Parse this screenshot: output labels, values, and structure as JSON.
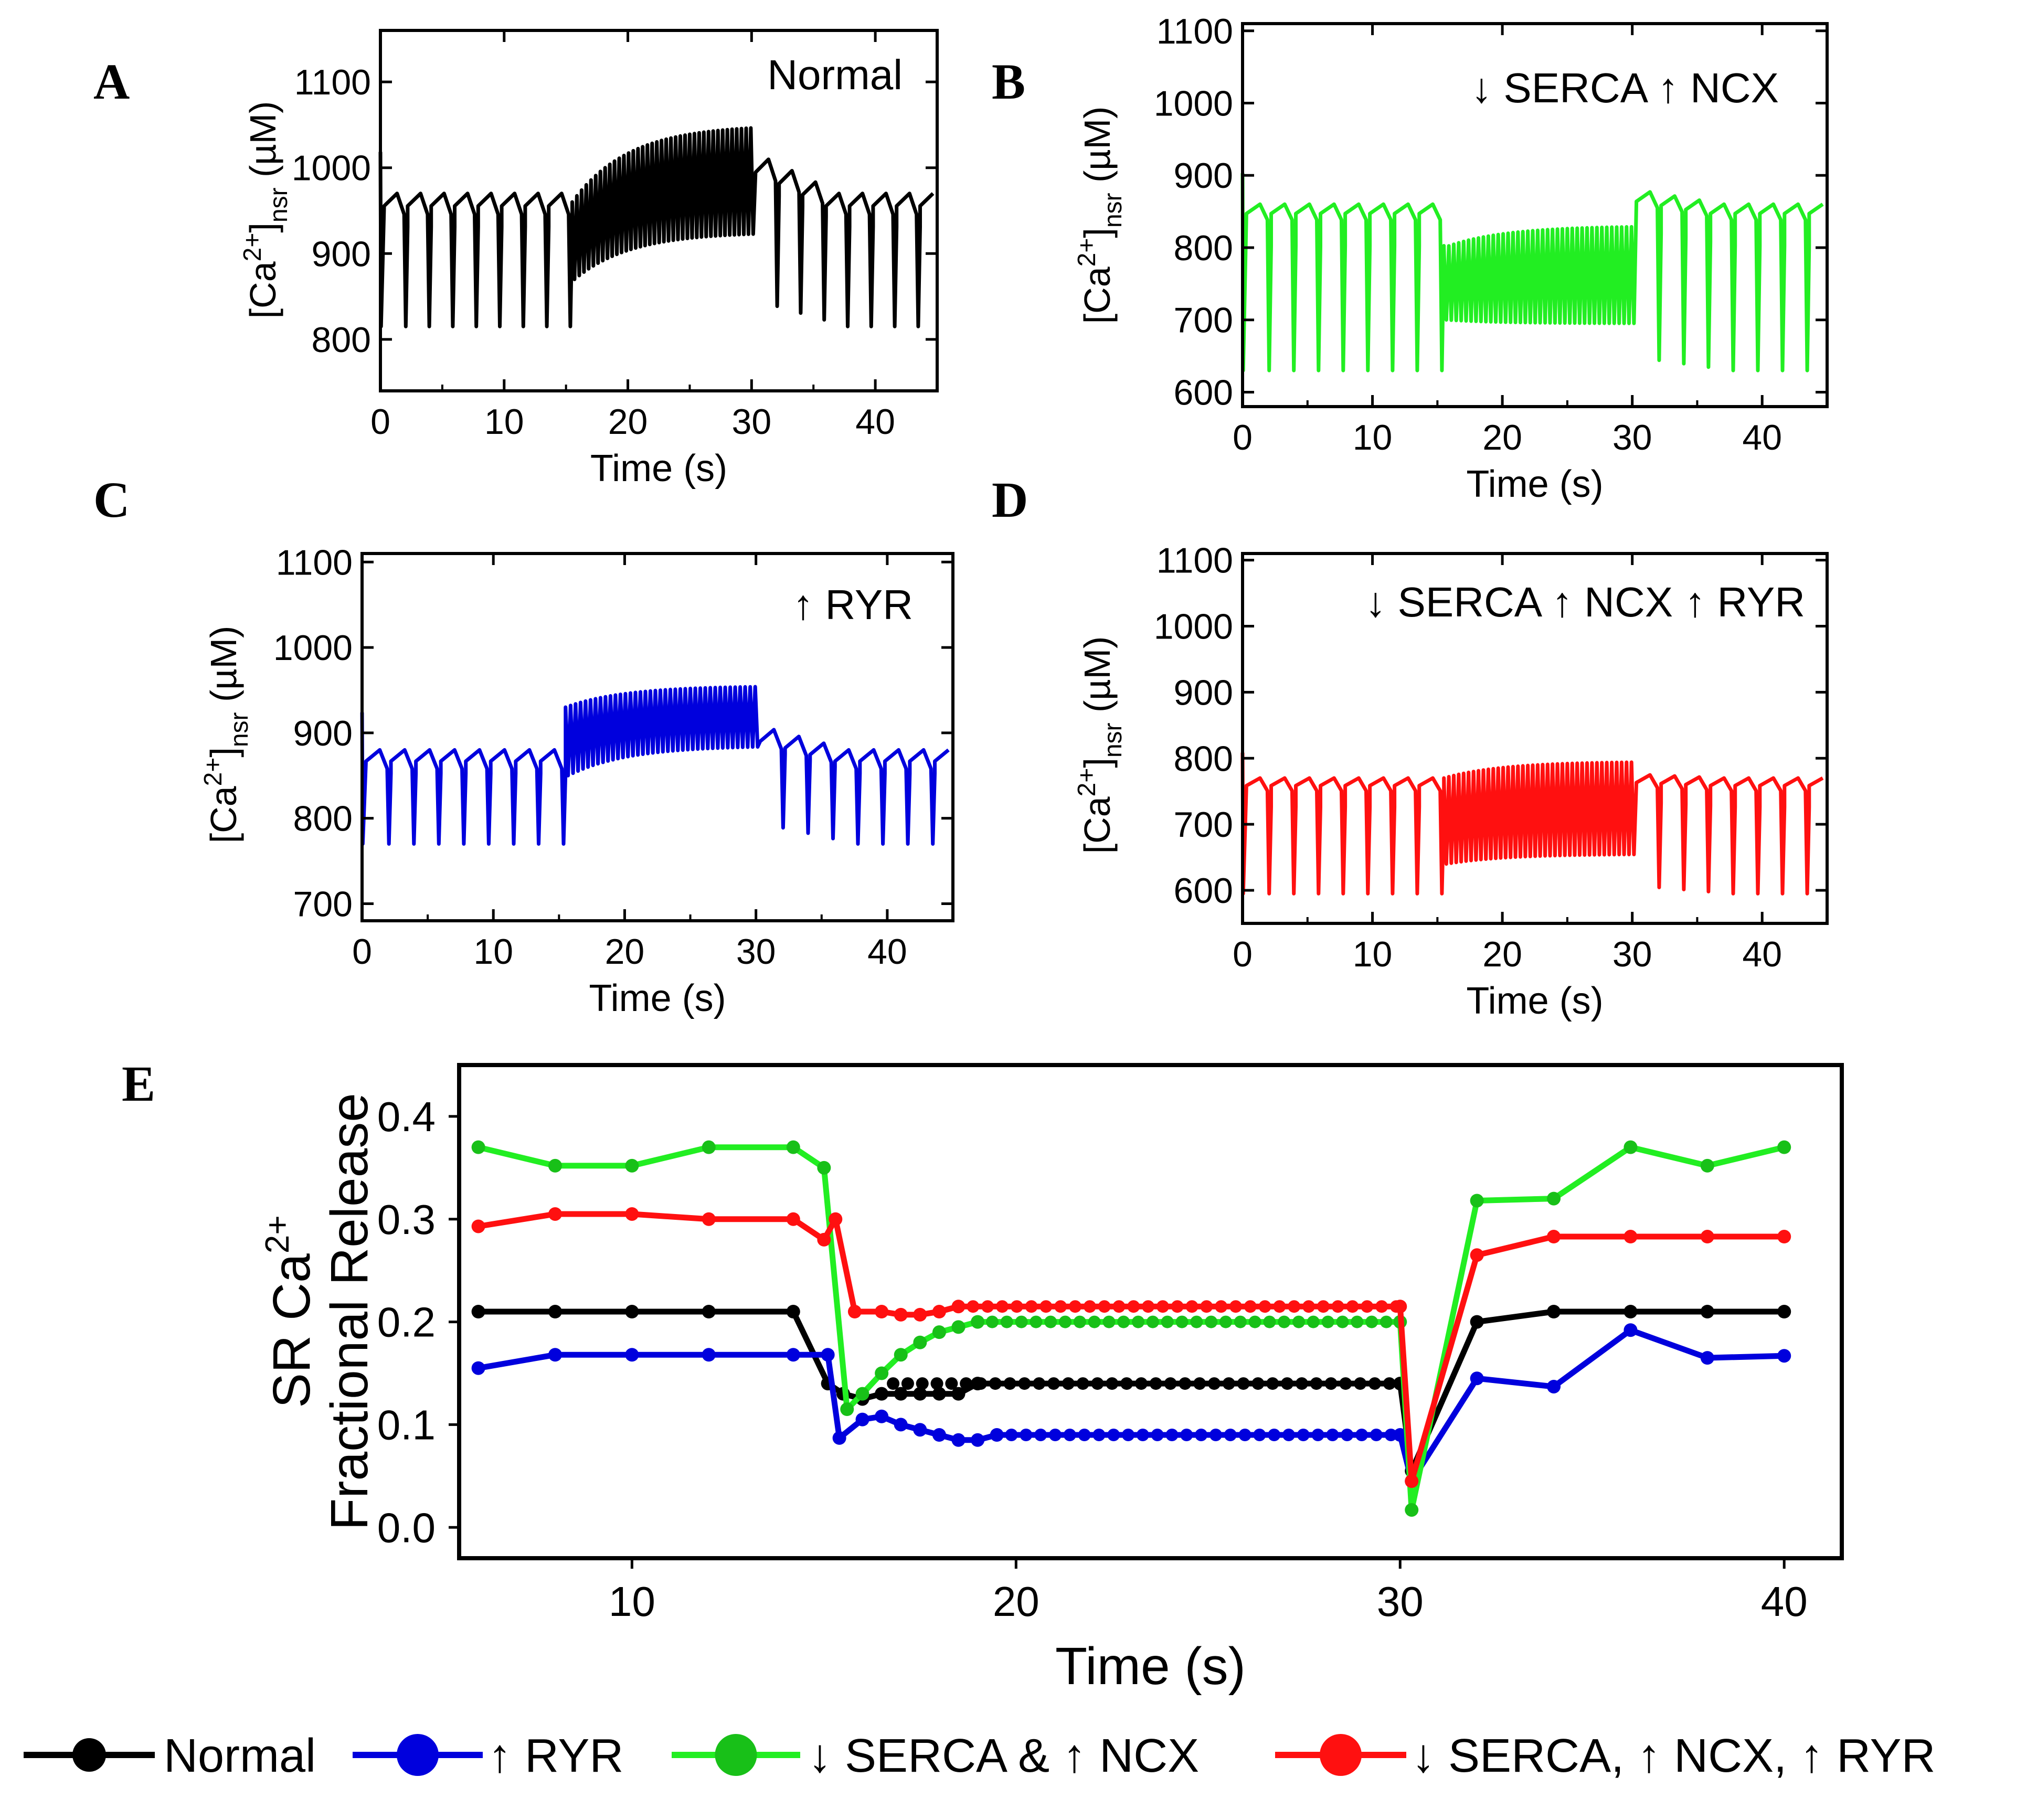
{
  "colors": {
    "normal": "#000000",
    "ryr": "#0000dd",
    "serca_ncx": "#22ee22",
    "serca_ncx_ryr": "#ff1010",
    "green_marker": "#18c018",
    "axis": "#000000"
  },
  "time_axis": {
    "ticks": [
      0,
      10,
      20,
      30,
      40
    ],
    "label": "Time (s)",
    "xlim": [
      0,
      45
    ]
  },
  "ca_unit_label": "(µM)",
  "chart_data": [
    {
      "type": "line",
      "panel": "A",
      "note": "Normal",
      "color_key": "normal",
      "xlabel": "Time (s)",
      "ylabel": "[Ca2+]nsr (µM)",
      "xlim": [
        0,
        45
      ],
      "ylim": [
        740,
        1160
      ],
      "yticks": [
        800,
        900,
        1000,
        1100
      ],
      "signal": {
        "period_slow": 1.9,
        "period_fast": 0.38,
        "fast_start": 15.5,
        "fast_end": 30.0,
        "slow_peak": 970,
        "slow_trough": 815,
        "fast_top_start": 960,
        "fast_top_end": 1050,
        "fast_bottom_start": 870,
        "fast_bottom_end": 925,
        "post_peak": 1012,
        "post_trough": 840
      }
    },
    {
      "type": "line",
      "panel": "B",
      "note": "↓ SERCA   ↑ NCX",
      "color_key": "serca_ncx",
      "xlabel": "Time (s)",
      "ylabel": "[Ca2+]nsr (µM)",
      "xlim": [
        0,
        45
      ],
      "ylim": [
        580,
        1110
      ],
      "yticks": [
        600,
        700,
        800,
        900,
        1000,
        1100
      ],
      "signal": {
        "period_slow": 1.9,
        "period_fast": 0.38,
        "fast_start": 15.5,
        "fast_end": 30.0,
        "slow_peak": 860,
        "slow_trough": 630,
        "fast_top_start": 800,
        "fast_top_end": 830,
        "fast_bottom_start": 700,
        "fast_bottom_end": 695,
        "post_peak": 878,
        "post_trough": 645
      }
    },
    {
      "type": "line",
      "panel": "C",
      "note": "↑ RYR",
      "color_key": "ryr",
      "xlabel": "Time (s)",
      "ylabel": "[Ca2+]nsr (µM)",
      "xlim": [
        0,
        45
      ],
      "ylim": [
        680,
        1110
      ],
      "yticks": [
        700,
        800,
        900,
        1000,
        1100
      ],
      "signal": {
        "period_slow": 1.9,
        "period_fast": 0.38,
        "fast_start": 15.5,
        "fast_end": 30.0,
        "slow_peak": 880,
        "slow_trough": 770,
        "fast_top_start": 930,
        "fast_top_end": 955,
        "fast_bottom_start": 850,
        "fast_bottom_end": 885,
        "post_peak": 905,
        "post_trough": 790
      }
    },
    {
      "type": "line",
      "panel": "D",
      "note": "↓ SERCA  ↑ NCX  ↑ RYR",
      "color_key": "serca_ncx_ryr",
      "xlabel": "Time (s)",
      "ylabel": "[Ca2+]nsr (µM)",
      "xlim": [
        0,
        45
      ],
      "ylim": [
        550,
        1110
      ],
      "yticks": [
        600,
        700,
        800,
        900,
        1000,
        1100
      ],
      "signal": {
        "period_slow": 1.9,
        "period_fast": 0.38,
        "fast_start": 15.5,
        "fast_end": 30.0,
        "slow_peak": 770,
        "slow_trough": 595,
        "fast_top_start": 770,
        "fast_top_end": 795,
        "fast_bottom_start": 640,
        "fast_bottom_end": 655,
        "post_peak": 775,
        "post_trough": 605
      }
    },
    {
      "type": "line",
      "panel": "E",
      "xlabel": "Time (s)",
      "ylabel_line1": "SR Ca",
      "ylabel_sup": "2+",
      "ylabel_line2": "Fractional Release",
      "xlim": [
        5.5,
        41.5
      ],
      "ylim": [
        -0.03,
        0.45
      ],
      "xticks": [
        10,
        20,
        30,
        40
      ],
      "yticks": [
        0.0,
        0.1,
        0.2,
        0.3,
        0.4
      ],
      "series": [
        {
          "name": "Normal",
          "color_key": "normal",
          "dense_band": [
            16.8,
            30.0
          ],
          "points": [
            [
              6,
              0.21
            ],
            [
              8,
              0.21
            ],
            [
              10,
              0.21
            ],
            [
              12,
              0.21
            ],
            [
              14.2,
              0.21
            ],
            [
              15.1,
              0.14
            ],
            [
              15.5,
              0.13
            ],
            [
              16,
              0.125
            ],
            [
              16.5,
              0.13
            ],
            [
              17,
              0.13
            ],
            [
              17.5,
              0.13
            ],
            [
              18,
              0.13
            ],
            [
              18.5,
              0.13
            ],
            [
              19,
              0.14
            ],
            [
              30,
              0.14
            ],
            [
              30.3,
              0.055
            ],
            [
              32,
              0.2
            ],
            [
              34,
              0.21
            ],
            [
              36,
              0.21
            ],
            [
              38,
              0.21
            ],
            [
              40,
              0.21
            ]
          ]
        },
        {
          "name": "↑ RYR",
          "color_key": "ryr",
          "dense_band": [
            19.5,
            30.0
          ],
          "points": [
            [
              6,
              0.155
            ],
            [
              8,
              0.168
            ],
            [
              10,
              0.168
            ],
            [
              12,
              0.168
            ],
            [
              14.2,
              0.168
            ],
            [
              15.1,
              0.168
            ],
            [
              15.4,
              0.087
            ],
            [
              16,
              0.105
            ],
            [
              16.5,
              0.108
            ],
            [
              17,
              0.1
            ],
            [
              17.5,
              0.095
            ],
            [
              18,
              0.09
            ],
            [
              18.5,
              0.085
            ],
            [
              19,
              0.085
            ],
            [
              19.5,
              0.09
            ],
            [
              30,
              0.09
            ],
            [
              30.3,
              0.045
            ],
            [
              32,
              0.145
            ],
            [
              34,
              0.137
            ],
            [
              36,
              0.192
            ],
            [
              38,
              0.165
            ],
            [
              40,
              0.167
            ]
          ]
        },
        {
          "name": "↓ SERCA & ↑ NCX",
          "color_key": "serca_ncx",
          "dense_band": [
            19.0,
            30.0
          ],
          "points": [
            [
              6,
              0.37
            ],
            [
              8,
              0.352
            ],
            [
              10,
              0.352
            ],
            [
              12,
              0.37
            ],
            [
              14.2,
              0.37
            ],
            [
              15,
              0.35
            ],
            [
              15.6,
              0.115
            ],
            [
              16,
              0.13
            ],
            [
              16.5,
              0.15
            ],
            [
              17,
              0.168
            ],
            [
              17.5,
              0.18
            ],
            [
              18,
              0.19
            ],
            [
              18.5,
              0.195
            ],
            [
              19,
              0.2
            ],
            [
              30,
              0.2
            ],
            [
              30.3,
              0.017
            ],
            [
              32,
              0.318
            ],
            [
              34,
              0.32
            ],
            [
              36,
              0.37
            ],
            [
              38,
              0.352
            ],
            [
              40,
              0.37
            ]
          ]
        },
        {
          "name": "↓ SERCA, ↑ NCX, ↑ RYR",
          "color_key": "serca_ncx_ryr",
          "dense_band": [
            18.5,
            30.0
          ],
          "points": [
            [
              6,
              0.293
            ],
            [
              8,
              0.305
            ],
            [
              10,
              0.305
            ],
            [
              12,
              0.3
            ],
            [
              14.2,
              0.3
            ],
            [
              15,
              0.28
            ],
            [
              15.3,
              0.3
            ],
            [
              15.8,
              0.21
            ],
            [
              16.5,
              0.21
            ],
            [
              17,
              0.207
            ],
            [
              17.5,
              0.207
            ],
            [
              18,
              0.21
            ],
            [
              18.5,
              0.215
            ],
            [
              30,
              0.215
            ],
            [
              30.3,
              0.045
            ],
            [
              32,
              0.265
            ],
            [
              34,
              0.283
            ],
            [
              36,
              0.283
            ],
            [
              38,
              0.283
            ],
            [
              40,
              0.283
            ]
          ]
        }
      ]
    }
  ],
  "legend": [
    {
      "label": "Normal",
      "color_key": "normal"
    },
    {
      "label": "↑ RYR",
      "color_key": "ryr"
    },
    {
      "label": "↓ SERCA & ↑ NCX",
      "color_key": "serca_ncx"
    },
    {
      "label": "↓ SERCA, ↑ NCX, ↑ RYR",
      "color_key": "serca_ncx_ryr"
    }
  ]
}
